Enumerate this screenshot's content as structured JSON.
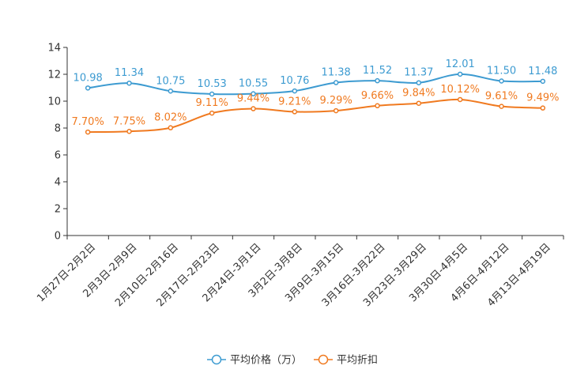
{
  "chart_data": {
    "type": "line",
    "title": "",
    "xlabel": "",
    "ylabel": "",
    "ylim": [
      0,
      14
    ],
    "yticks": [
      0,
      2,
      4,
      6,
      8,
      10,
      12,
      14
    ],
    "grid": false,
    "legend_position": "bottom-center",
    "categories": [
      "1月27日-2月2日",
      "2月3日-2月9日",
      "2月10日-2月16日",
      "2月17日-2月23日",
      "2月24日-3月1日",
      "3月2日-3月8日",
      "3月9日-3月15日",
      "3月16日-3月22日",
      "3月23日-3月29日",
      "3月30日-4月5日",
      "4月6日-4月12日",
      "4月13日-4月19日"
    ],
    "series": [
      {
        "name": "平均价格（万）",
        "color": "#3d9bd1",
        "values": [
          10.98,
          11.34,
          10.75,
          10.53,
          10.55,
          10.76,
          11.38,
          11.52,
          11.37,
          12.01,
          11.5,
          11.48
        ],
        "labels": [
          "10.98",
          "11.34",
          "10.75",
          "10.53",
          "10.55",
          "10.76",
          "11.38",
          "11.52",
          "11.37",
          "12.01",
          "11.50",
          "11.48"
        ]
      },
      {
        "name": "平均折扣",
        "color": "#f07a20",
        "values": [
          7.7,
          7.75,
          8.02,
          9.11,
          9.44,
          9.21,
          9.29,
          9.66,
          9.84,
          10.12,
          9.61,
          9.49
        ],
        "labels": [
          "7.70%",
          "7.75%",
          "8.02%",
          "9.11%",
          "9.44%",
          "9.21%",
          "9.29%",
          "9.66%",
          "9.84%",
          "10.12%",
          "9.61%",
          "9.49%"
        ]
      }
    ]
  }
}
